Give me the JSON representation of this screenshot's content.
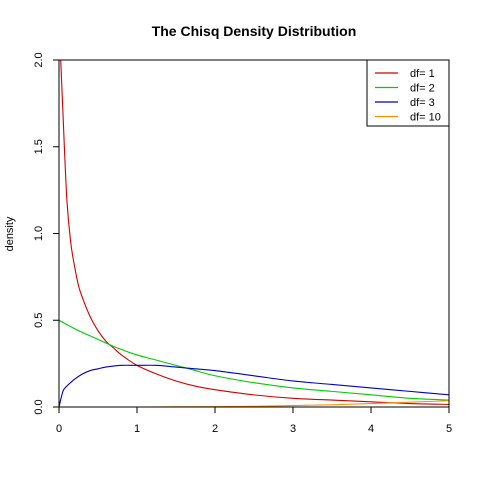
{
  "chart_data": {
    "type": "line",
    "title": "The Chisq Density Distribution",
    "xlabel": "",
    "ylabel": "density",
    "xlim": [
      0,
      5
    ],
    "ylim": [
      0,
      2.0
    ],
    "x_ticks": [
      0,
      1,
      2,
      3,
      4,
      5
    ],
    "y_ticks": [
      0.0,
      0.5,
      1.0,
      1.5,
      2.0
    ],
    "y_tick_labels": [
      "0.0",
      "0.5",
      "1.0",
      "1.5",
      "2.0"
    ],
    "grid": false,
    "legend_position": "top-right",
    "series": [
      {
        "name": "df= 1",
        "color": "#d00000",
        "x": [
          0.05,
          0.1,
          0.15,
          0.2,
          0.25,
          0.3,
          0.4,
          0.5,
          0.6,
          0.7,
          0.8,
          1.0,
          1.25,
          1.5,
          1.75,
          2.0,
          2.5,
          3.0,
          3.5,
          4.0,
          4.5,
          5.0
        ],
        "y": [
          1.7,
          1.2,
          0.95,
          0.81,
          0.7,
          0.63,
          0.52,
          0.44,
          0.38,
          0.34,
          0.3,
          0.24,
          0.19,
          0.15,
          0.12,
          0.1,
          0.07,
          0.05,
          0.04,
          0.03,
          0.02,
          0.015
        ]
      },
      {
        "name": "df= 2",
        "color": "#00cc00",
        "x": [
          0.0,
          0.25,
          0.5,
          0.75,
          1.0,
          1.25,
          1.5,
          1.75,
          2.0,
          2.5,
          3.0,
          3.5,
          4.0,
          4.5,
          5.0
        ],
        "y": [
          0.5,
          0.44,
          0.39,
          0.34,
          0.3,
          0.27,
          0.24,
          0.21,
          0.18,
          0.14,
          0.11,
          0.09,
          0.07,
          0.05,
          0.04
        ]
      },
      {
        "name": "df= 3",
        "color": "#0000c0",
        "x": [
          0.0,
          0.05,
          0.1,
          0.2,
          0.3,
          0.4,
          0.5,
          0.6,
          0.8,
          1.0,
          1.25,
          1.5,
          1.75,
          2.0,
          2.5,
          3.0,
          3.5,
          4.0,
          4.5,
          5.0
        ],
        "y": [
          0.0,
          0.09,
          0.12,
          0.16,
          0.19,
          0.21,
          0.22,
          0.23,
          0.24,
          0.24,
          0.24,
          0.23,
          0.22,
          0.21,
          0.18,
          0.15,
          0.13,
          0.11,
          0.09,
          0.07
        ]
      },
      {
        "name": "df= 10",
        "color": "#ff8c00",
        "x": [
          0.0,
          0.5,
          1.0,
          1.5,
          2.0,
          2.5,
          3.0,
          3.5,
          4.0,
          4.5,
          5.0
        ],
        "y": [
          0.0,
          0.0,
          0.0,
          0.001,
          0.002,
          0.004,
          0.008,
          0.013,
          0.02,
          0.028,
          0.036
        ]
      }
    ]
  }
}
